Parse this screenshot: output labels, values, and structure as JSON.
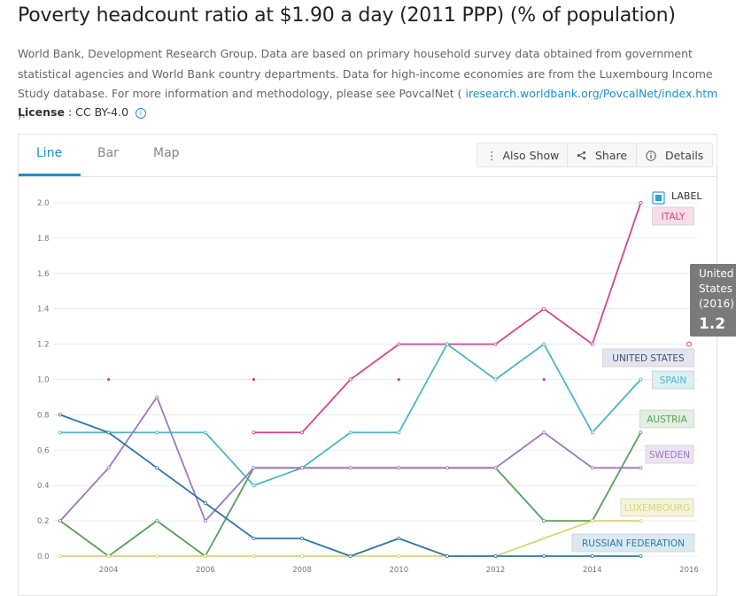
{
  "page": {
    "title": "Poverty headcount ratio at $1.90 a day (2011 PPP) (% of population)",
    "source_text": "World Bank, Development Research Group. Data are based on primary household survey data obtained from government statistical agencies and World Bank country departments. Data for high-income economies are from the Luxembourg Income Study database. For more information and methodology, please see PovcalNet (",
    "source_link": "iresearch.worldbank.org/PovcalNet/index.htm",
    "source_end": ").",
    "license_label": "License",
    "license_sep": ":",
    "license_value": "CC BY-4.0"
  },
  "tabs": [
    {
      "label": "Line"
    },
    {
      "label": "Bar"
    },
    {
      "label": "Map"
    }
  ],
  "toolbar": {
    "also_show": "Also Show",
    "share": "Share",
    "details": "Details"
  },
  "icons": {
    "also_show": "vertical-dots-icon",
    "share": "share-icon",
    "details": "info-circle-icon",
    "license_info": "info-icon"
  },
  "chart_data": {
    "type": "line",
    "title": "Poverty headcount ratio at $1.90 a day (2011 PPP) (% of population)",
    "xlabel": "",
    "ylabel": "",
    "xlim": [
      2003,
      2016
    ],
    "ylim": [
      0,
      2.0
    ],
    "x_ticks": [
      2004,
      2006,
      2008,
      2010,
      2012,
      2014,
      2016
    ],
    "y_ticks": [
      "0.0",
      "0.2",
      "0.4",
      "0.6",
      "0.8",
      "1.0",
      "1.2",
      "1.4",
      "1.6",
      "1.8",
      "2.0"
    ],
    "grid": true,
    "legend_label": "LABEL",
    "series": [
      {
        "name": "ITALY",
        "color": "#d4458a",
        "label_bg": "#f8dde9",
        "points": [
          [
            2007,
            0.7
          ],
          [
            2008,
            0.7
          ],
          [
            2009,
            1.0
          ],
          [
            2010,
            1.2
          ],
          [
            2011,
            1.2
          ],
          [
            2012,
            1.2
          ],
          [
            2013,
            1.4
          ],
          [
            2014,
            1.2
          ],
          [
            2015,
            2.0
          ]
        ],
        "markers": [
          [
            2004,
            1.0
          ],
          [
            2007,
            1.0
          ],
          [
            2010,
            1.0
          ],
          [
            2013,
            1.0
          ]
        ]
      },
      {
        "name": "UNITED STATES",
        "color": "#3b4f7c",
        "label_bg": "#e3e6ef",
        "points": [],
        "markers": [
          [
            2016,
            1.2
          ]
        ]
      },
      {
        "name": "SPAIN",
        "color": "#4bb6c6",
        "label_bg": "#d9f1f4",
        "points": [
          [
            2003,
            0.7
          ],
          [
            2004,
            0.7
          ],
          [
            2005,
            0.7
          ],
          [
            2006,
            0.7
          ],
          [
            2007,
            0.4
          ],
          [
            2008,
            0.5
          ],
          [
            2009,
            0.7
          ],
          [
            2010,
            0.7
          ],
          [
            2011,
            1.2
          ],
          [
            2012,
            1.0
          ],
          [
            2013,
            1.2
          ],
          [
            2014,
            0.7
          ],
          [
            2015,
            1.0
          ]
        ]
      },
      {
        "name": "AUSTRIA",
        "color": "#5a9e5a",
        "label_bg": "#e0efe0",
        "points": [
          [
            2003,
            0.2
          ],
          [
            2004,
            0.0
          ],
          [
            2005,
            0.2
          ],
          [
            2006,
            0.0
          ],
          [
            2007,
            0.5
          ],
          [
            2008,
            0.5
          ],
          [
            2009,
            0.5
          ],
          [
            2010,
            0.5
          ],
          [
            2011,
            0.5
          ],
          [
            2012,
            0.5
          ],
          [
            2013,
            0.2
          ],
          [
            2014,
            0.2
          ],
          [
            2015,
            0.7
          ]
        ]
      },
      {
        "name": "SWEDEN",
        "color": "#9b79bf",
        "label_bg": "#ece4f4",
        "points": [
          [
            2003,
            0.2
          ],
          [
            2004,
            0.5
          ],
          [
            2005,
            0.9
          ],
          [
            2006,
            0.2
          ],
          [
            2007,
            0.5
          ],
          [
            2008,
            0.5
          ],
          [
            2009,
            0.5
          ],
          [
            2010,
            0.5
          ],
          [
            2011,
            0.5
          ],
          [
            2012,
            0.5
          ],
          [
            2013,
            0.7
          ],
          [
            2014,
            0.5
          ],
          [
            2015,
            0.5
          ]
        ]
      },
      {
        "name": "LUXEMBOURG",
        "color": "#d6d478",
        "label_bg": "#f5f4d9",
        "points": [
          [
            2003,
            0.0
          ],
          [
            2004,
            0.0
          ],
          [
            2005,
            0.0
          ],
          [
            2006,
            0.0
          ],
          [
            2007,
            0.0
          ],
          [
            2008,
            0.0
          ],
          [
            2009,
            0.0
          ],
          [
            2010,
            0.0
          ],
          [
            2011,
            0.0
          ],
          [
            2012,
            0.0
          ],
          [
            2013,
            0.1
          ],
          [
            2014,
            0.2
          ],
          [
            2015,
            0.2
          ]
        ]
      },
      {
        "name": "RUSSIAN FEDERATION",
        "color": "#2f77a6",
        "label_bg": "#dbe9f3",
        "points": [
          [
            2003,
            0.8
          ],
          [
            2004,
            0.7
          ],
          [
            2005,
            0.5
          ],
          [
            2006,
            0.3
          ],
          [
            2007,
            0.1
          ],
          [
            2008,
            0.1
          ],
          [
            2009,
            0.0
          ],
          [
            2010,
            0.1
          ],
          [
            2011,
            0.0
          ],
          [
            2012,
            0.0
          ],
          [
            2013,
            0.0
          ],
          [
            2014,
            0.0
          ],
          [
            2015,
            0.0
          ]
        ]
      }
    ],
    "tooltip": {
      "title": "United States (2016)",
      "line1": "United",
      "line2": "States",
      "line3": "(2016)",
      "value": "1.2"
    }
  }
}
